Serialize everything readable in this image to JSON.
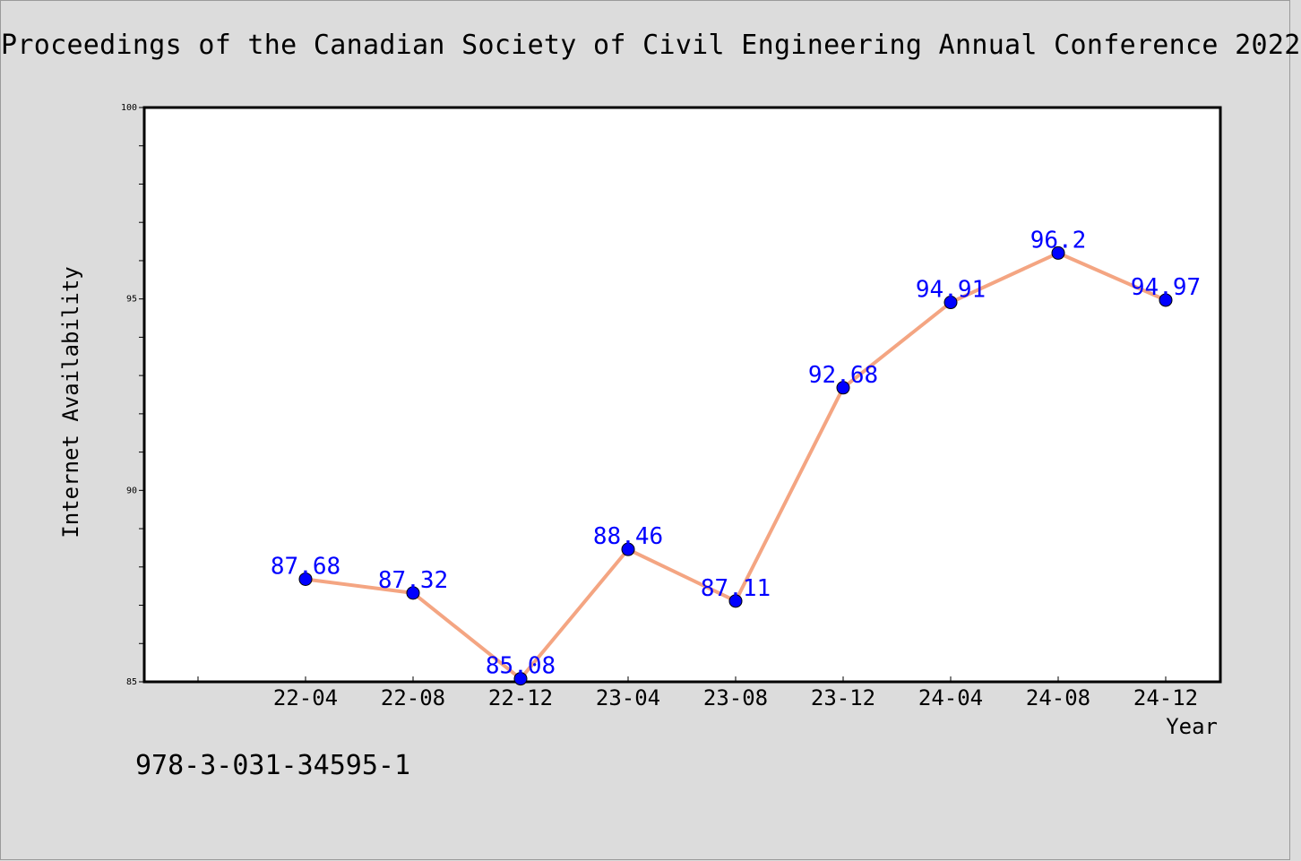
{
  "page": {
    "title": "Proceedings of the Canadian Society of Civil Engineering Annual Conference 2022",
    "isbn": "978-3-031-34595-1"
  },
  "chart_data": {
    "type": "line",
    "xlabel": "Year",
    "ylabel": "Internet Availability",
    "categories": [
      "22-04",
      "22-08",
      "22-12",
      "23-04",
      "23-08",
      "23-12",
      "24-04",
      "24-08",
      "24-12"
    ],
    "series": [
      {
        "values": [
          87.68,
          87.32,
          85.08,
          88.46,
          87.11,
          92.68,
          94.91,
          96.2,
          94.97
        ]
      }
    ],
    "data_labels": [
      "87.68",
      "87.32",
      "85.08",
      "88.46",
      "87.11",
      "92.68",
      "94.91",
      "96.2",
      "94.97"
    ],
    "ylim": [
      85,
      100
    ],
    "y_ticks": [
      85,
      90,
      95,
      100
    ],
    "grid": false,
    "legend": "none",
    "colors": {
      "line": "#f4a582",
      "marker": "#0000ff",
      "data_label": "#0000ff",
      "background": "#dcdcdc",
      "plot_background": "#ffffff"
    }
  }
}
